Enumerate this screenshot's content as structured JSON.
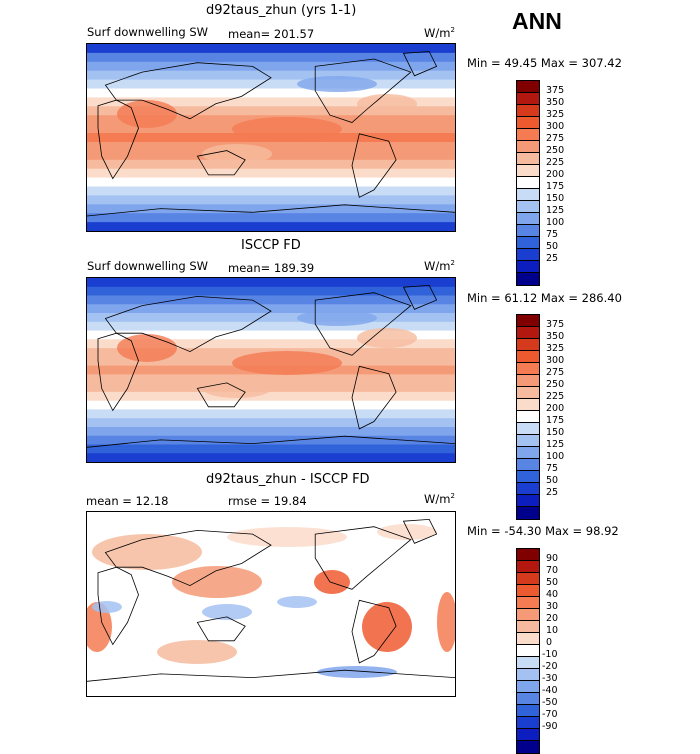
{
  "season": "ANN",
  "panels": [
    {
      "title": "d92taus_zhun (yrs 1-1)",
      "field": "Surf downwelling SW",
      "stat": "mean= 201.57",
      "units": "W/m",
      "units_exp": "2",
      "minmax": "Min =  49.45 Max = 307.42",
      "colorbar": {
        "labels": [
          "375",
          "350",
          "325",
          "300",
          "275",
          "250",
          "225",
          "200",
          "175",
          "150",
          "125",
          "100",
          "75",
          "50",
          "25"
        ],
        "colors": [
          "#800000",
          "#b2180f",
          "#d63a1c",
          "#ee5a30",
          "#f47b52",
          "#f59a76",
          "#f6bb9e",
          "#fbdccb",
          "#ffffff",
          "#c9dcf6",
          "#a3c2f2",
          "#7fa6ec",
          "#5884e4",
          "#3062d9",
          "#1a3fd0",
          "#0d1ec0",
          "#00008c"
        ]
      },
      "map_style": "absolute"
    },
    {
      "title": "ISCCP FD",
      "field": "Surf downwelling SW",
      "stat": "mean= 189.39",
      "units": "W/m",
      "units_exp": "2",
      "minmax": "Min =  61.12 Max = 286.40",
      "colorbar": {
        "labels": [
          "375",
          "350",
          "325",
          "300",
          "275",
          "250",
          "225",
          "200",
          "175",
          "150",
          "125",
          "100",
          "75",
          "50",
          "25"
        ],
        "colors": [
          "#800000",
          "#b2180f",
          "#d63a1c",
          "#ee5a30",
          "#f47b52",
          "#f59a76",
          "#f6bb9e",
          "#fbdccb",
          "#ffffff",
          "#c9dcf6",
          "#a3c2f2",
          "#7fa6ec",
          "#5884e4",
          "#3062d9",
          "#1a3fd0",
          "#0d1ec0",
          "#00008c"
        ]
      },
      "map_style": "absolute"
    },
    {
      "title": "d92taus_zhun - ISCCP FD",
      "stat_left": "mean =   12.18",
      "stat_mid": "rmse =   19.84",
      "units": "W/m",
      "units_exp": "2",
      "minmax": "Min = -54.30 Max =  98.92",
      "colorbar": {
        "labels": [
          "90",
          "70",
          "50",
          "40",
          "30",
          "20",
          "10",
          "0",
          "-10",
          "-20",
          "-30",
          "-40",
          "-50",
          "-70",
          "-90"
        ],
        "colors": [
          "#800000",
          "#b2180f",
          "#d63a1c",
          "#ee5a30",
          "#f47b52",
          "#f59a76",
          "#f6bb9e",
          "#fbdccb",
          "#ffffff",
          "#c9dcf6",
          "#a3c2f2",
          "#7fa6ec",
          "#5884e4",
          "#3062d9",
          "#1a3fd0",
          "#0d1ec0",
          "#00008c"
        ]
      },
      "map_style": "difference"
    }
  ]
}
